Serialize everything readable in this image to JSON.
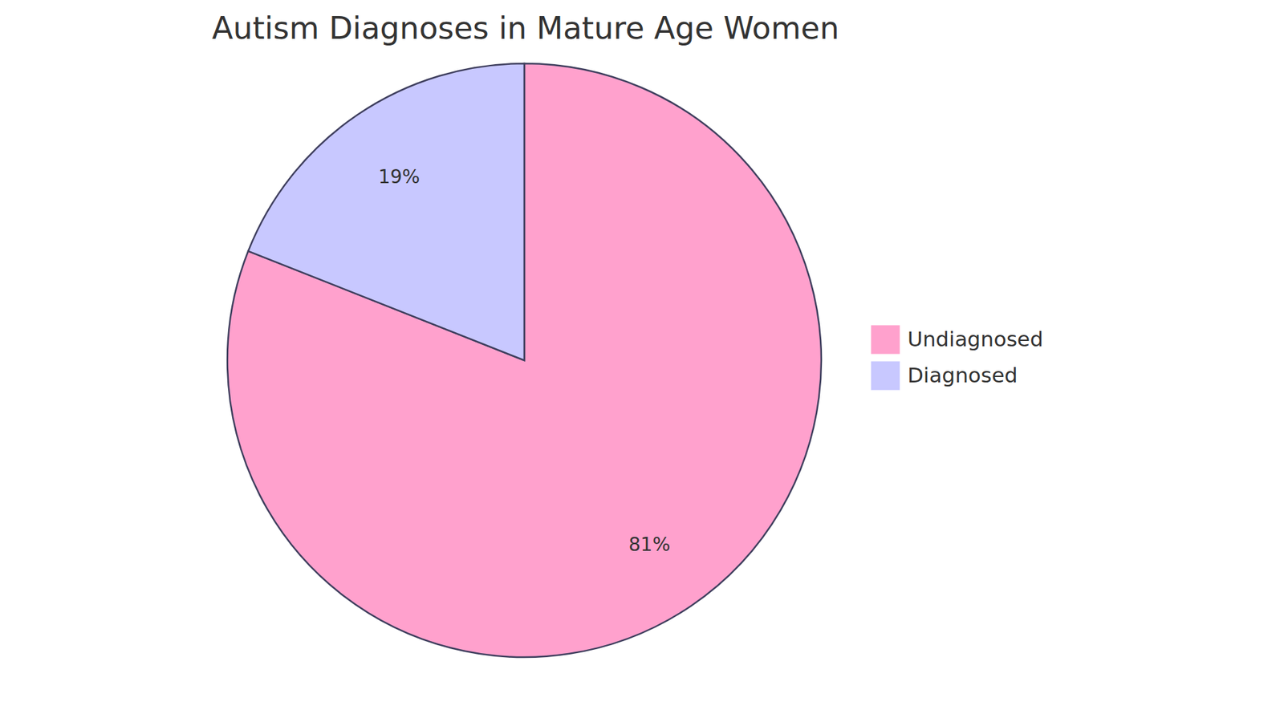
{
  "chart_data": {
    "type": "pie",
    "title": "Autism Diagnoses in Mature Age Women",
    "categories": [
      "Undiagnosed",
      "Diagnosed"
    ],
    "values": [
      81,
      19
    ],
    "value_labels": [
      "81%",
      "19%"
    ],
    "colors": [
      "#ffa1cd",
      "#c8c8ff"
    ],
    "data_labels": true,
    "legend": "right"
  }
}
